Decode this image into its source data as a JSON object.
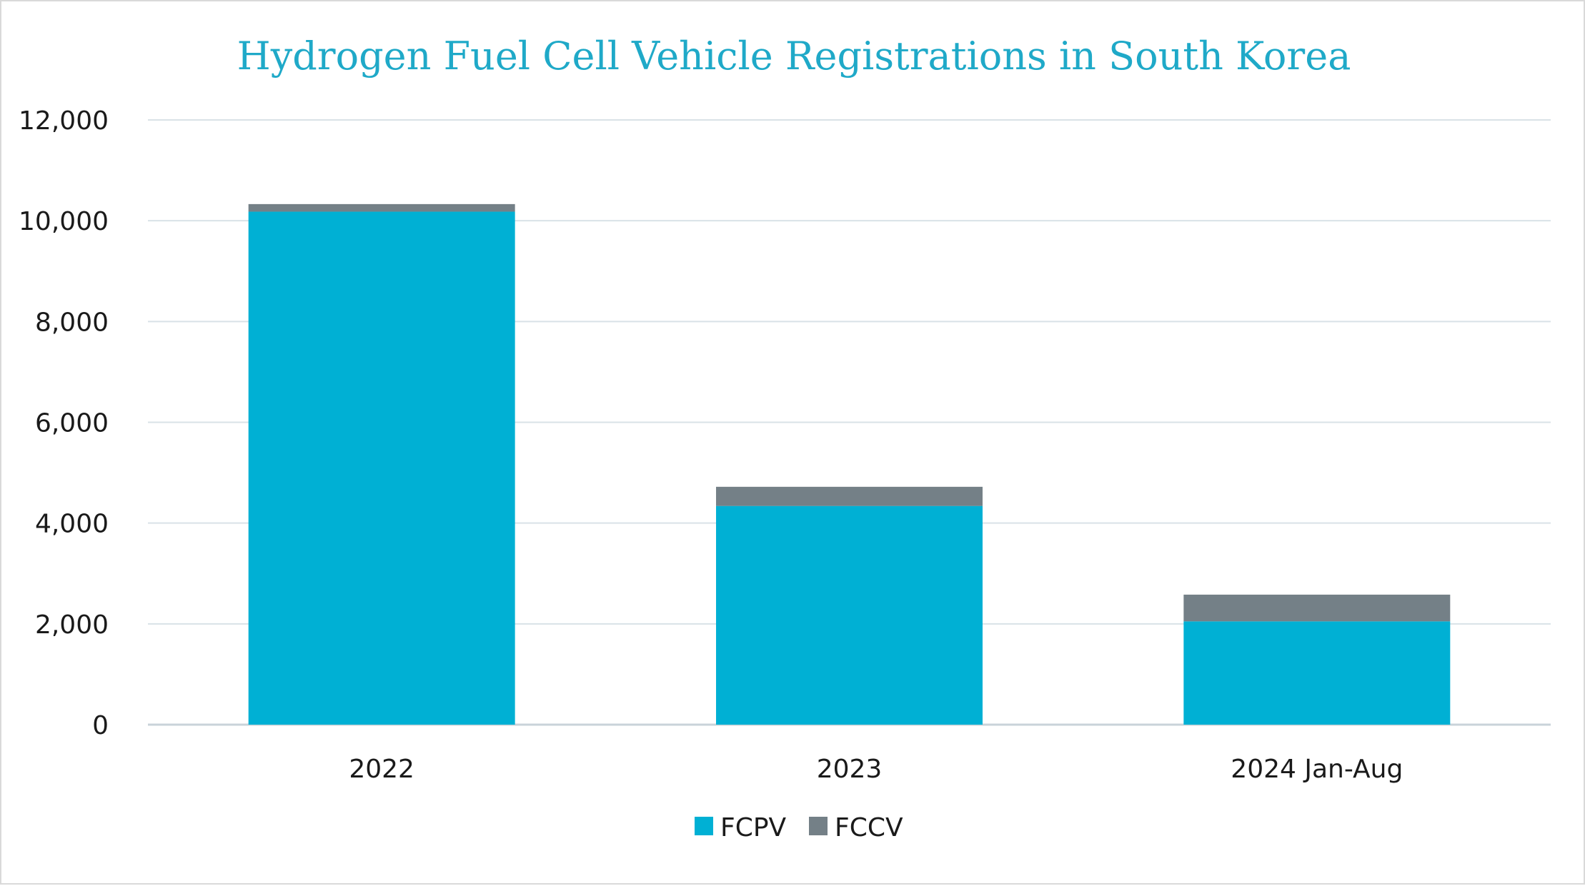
{
  "chart_data": {
    "type": "bar",
    "stacked": true,
    "title": "Hydrogen Fuel Cell Vehicle Registrations in South Korea",
    "categories": [
      "2022",
      "2023",
      "2024 Jan-Aug"
    ],
    "series": [
      {
        "name": "FCPV",
        "color": "#00b0d4",
        "values": [
          10180,
          4340,
          2050
        ]
      },
      {
        "name": "FCCV",
        "color": "#748087",
        "values": [
          150,
          380,
          530
        ]
      }
    ],
    "ylim": [
      0,
      12000
    ],
    "yticks": [
      "0",
      "2,000",
      "4,000",
      "6,000",
      "8,000",
      "10,000",
      "12,000"
    ],
    "grid": true,
    "legend_position": "bottom-center",
    "xlabel": "",
    "ylabel": ""
  }
}
